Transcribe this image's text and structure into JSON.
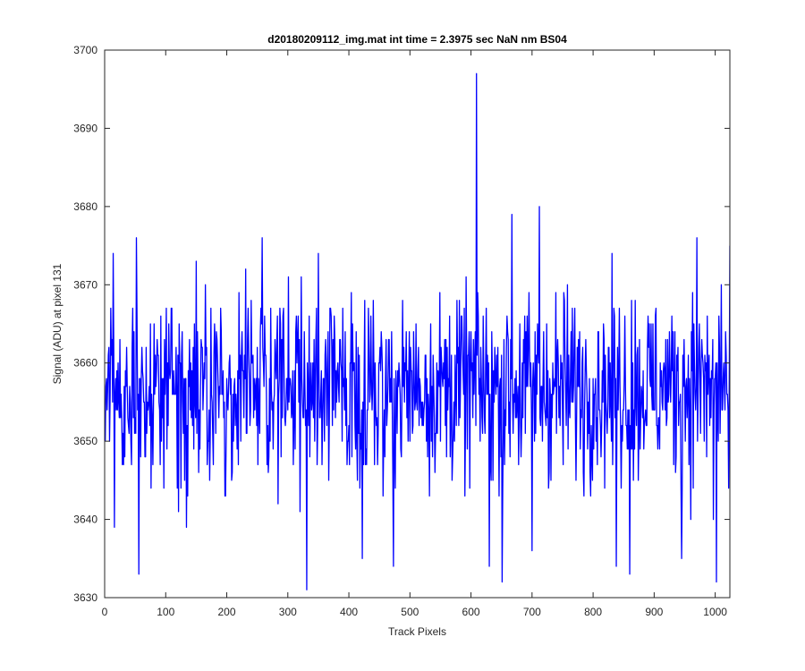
{
  "chart_data": {
    "type": "line",
    "title": "d20180209112_img.mat int time = 2.3975 sec  NaN nm BS04",
    "xlabel": "Track Pixels",
    "ylabel": "Signal (ADU) at pixel 131",
    "xlim": [
      0,
      1024
    ],
    "ylim": [
      3630,
      3700
    ],
    "xticks": [
      0,
      100,
      200,
      300,
      400,
      500,
      600,
      700,
      800,
      900,
      1000
    ],
    "yticks": [
      3630,
      3640,
      3650,
      3660,
      3670,
      3680,
      3690,
      3700
    ],
    "xtick_labels": [
      "0",
      "100",
      "200",
      "300",
      "400",
      "500",
      "600",
      "700",
      "800",
      "900",
      "1000"
    ],
    "ytick_labels": [
      "3630",
      "3640",
      "3650",
      "3660",
      "3670",
      "3680",
      "3690",
      "3700"
    ],
    "grid": false,
    "line_color": "#0000ff",
    "series": [
      {
        "name": "",
        "x_start": 1,
        "x_step": 1,
        "count": 1024,
        "baseline": 3657,
        "noise_amplitude": 6,
        "extremes": [
          {
            "x": 14,
            "y": 3674
          },
          {
            "x": 16,
            "y": 3639
          },
          {
            "x": 52,
            "y": 3676
          },
          {
            "x": 56,
            "y": 3633
          },
          {
            "x": 134,
            "y": 3639
          },
          {
            "x": 150,
            "y": 3673
          },
          {
            "x": 258,
            "y": 3676
          },
          {
            "x": 320,
            "y": 3641
          },
          {
            "x": 331,
            "y": 3631
          },
          {
            "x": 350,
            "y": 3674
          },
          {
            "x": 422,
            "y": 3635
          },
          {
            "x": 473,
            "y": 3634
          },
          {
            "x": 609,
            "y": 3697
          },
          {
            "x": 630,
            "y": 3634
          },
          {
            "x": 651,
            "y": 3632
          },
          {
            "x": 667,
            "y": 3679
          },
          {
            "x": 712,
            "y": 3680
          },
          {
            "x": 700,
            "y": 3636
          },
          {
            "x": 838,
            "y": 3634
          },
          {
            "x": 860,
            "y": 3633
          },
          {
            "x": 945,
            "y": 3635
          },
          {
            "x": 970,
            "y": 3676
          },
          {
            "x": 997,
            "y": 3640
          },
          {
            "x": 1002,
            "y": 3632
          },
          {
            "x": 1010,
            "y": 3670
          },
          {
            "x": 1022,
            "y": 3644
          }
        ]
      }
    ]
  }
}
